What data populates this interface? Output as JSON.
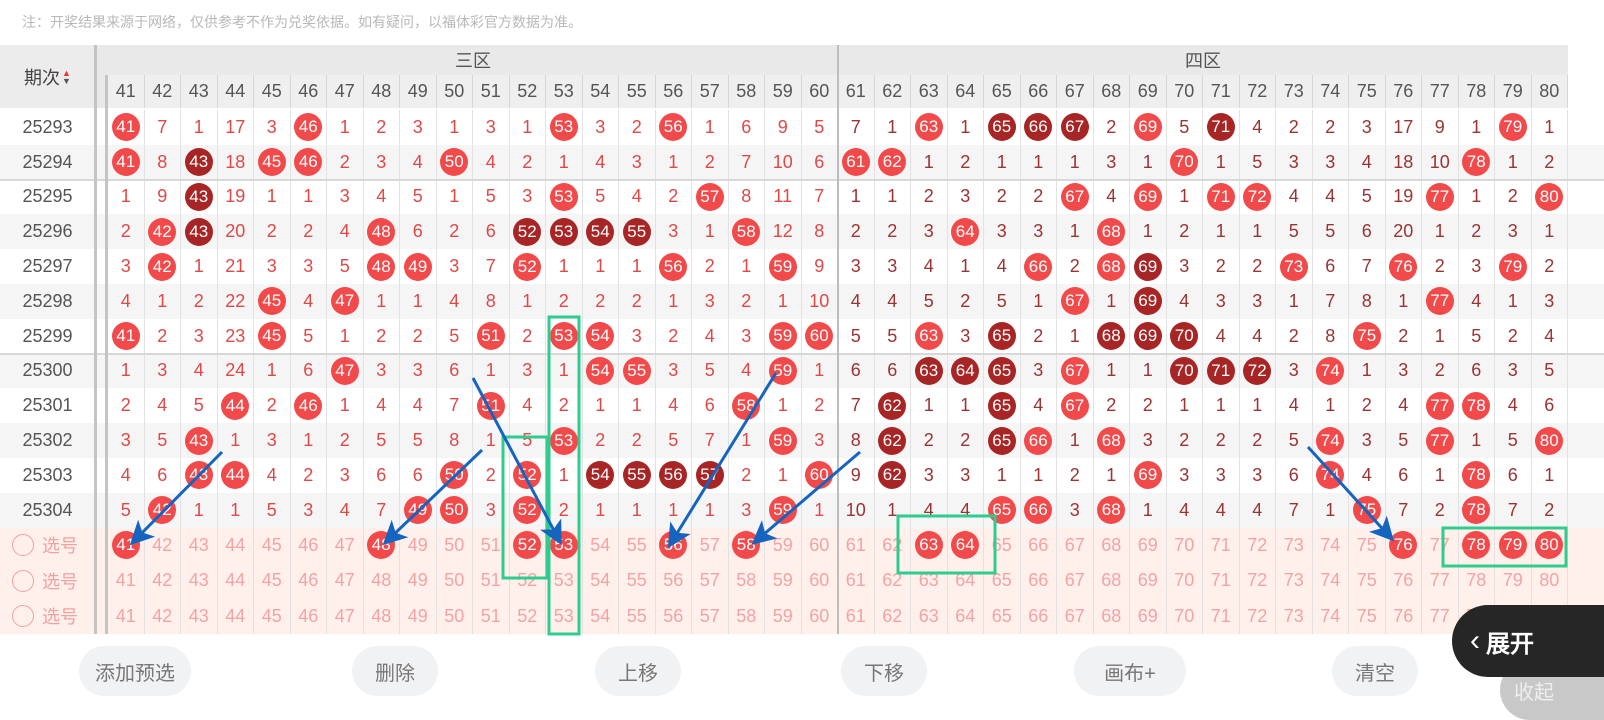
{
  "note": "注：开奖结果来源于网络，仅供参考不作为兑奖依据。如有疑问，以福体彩官方数据为准。",
  "header": {
    "issue_label": "期次",
    "zones": [
      {
        "label": "三区",
        "from": 41,
        "to": 60
      },
      {
        "label": "四区",
        "from": 61,
        "to": 80
      }
    ],
    "columns": [
      "41",
      "42",
      "43",
      "44",
      "45",
      "46",
      "47",
      "48",
      "49",
      "50",
      "51",
      "52",
      "53",
      "54",
      "55",
      "56",
      "57",
      "58",
      "59",
      "60",
      "61",
      "62",
      "63",
      "64",
      "65",
      "66",
      "67",
      "68",
      "69",
      "70",
      "71",
      "72",
      "73",
      "74",
      "75",
      "76",
      "77",
      "78",
      "79",
      "80"
    ]
  },
  "colors": {
    "ball": "#f24a4a",
    "ball_dark": "#a82525",
    "arrow": "#1565c0",
    "highlight_box": "#2ecc8f"
  },
  "rows": [
    {
      "issue": "25293",
      "cells": [
        {
          "ball": "41"
        },
        7,
        1,
        17,
        3,
        {
          "ball": "46"
        },
        1,
        2,
        3,
        1,
        3,
        1,
        {
          "ball": "53"
        },
        3,
        2,
        {
          "ball": "56"
        },
        1,
        6,
        9,
        5,
        7,
        1,
        {
          "ball": "63"
        },
        1,
        {
          "ball": "65",
          "dark": true
        },
        {
          "ball": "66",
          "dark": true
        },
        {
          "ball": "67",
          "dark": true
        },
        2,
        {
          "ball": "69"
        },
        5,
        {
          "ball": "71",
          "dark": true
        },
        4,
        2,
        2,
        3,
        17,
        9,
        1,
        {
          "ball": "79"
        },
        1
      ]
    },
    {
      "issue": "25294",
      "cells": [
        {
          "ball": "41"
        },
        8,
        {
          "ball": "43",
          "dark": true
        },
        18,
        {
          "ball": "45"
        },
        {
          "ball": "46"
        },
        2,
        3,
        4,
        {
          "ball": "50"
        },
        4,
        2,
        1,
        4,
        3,
        1,
        2,
        7,
        10,
        6,
        {
          "ball": "61"
        },
        {
          "ball": "62"
        },
        1,
        2,
        1,
        1,
        1,
        3,
        1,
        {
          "ball": "70"
        },
        1,
        5,
        3,
        3,
        4,
        18,
        10,
        {
          "ball": "78"
        },
        1,
        2
      ]
    },
    {
      "issue": "25295",
      "cells": [
        1,
        9,
        {
          "ball": "43",
          "dark": true
        },
        19,
        1,
        1,
        3,
        4,
        5,
        1,
        5,
        3,
        {
          "ball": "53"
        },
        5,
        4,
        2,
        {
          "ball": "57"
        },
        8,
        11,
        7,
        1,
        1,
        2,
        3,
        2,
        2,
        {
          "ball": "67"
        },
        4,
        {
          "ball": "69"
        },
        1,
        {
          "ball": "71"
        },
        {
          "ball": "72"
        },
        4,
        4,
        5,
        19,
        {
          "ball": "77"
        },
        1,
        2,
        {
          "ball": "80"
        }
      ]
    },
    {
      "issue": "25296",
      "cells": [
        2,
        {
          "ball": "42"
        },
        {
          "ball": "43",
          "dark": true
        },
        20,
        2,
        2,
        4,
        {
          "ball": "48"
        },
        6,
        2,
        6,
        {
          "ball": "52",
          "dark": true
        },
        {
          "ball": "53",
          "dark": true
        },
        {
          "ball": "54",
          "dark": true
        },
        {
          "ball": "55",
          "dark": true
        },
        3,
        1,
        {
          "ball": "58"
        },
        12,
        8,
        2,
        2,
        3,
        {
          "ball": "64"
        },
        3,
        3,
        1,
        {
          "ball": "68"
        },
        1,
        2,
        1,
        1,
        5,
        5,
        6,
        20,
        1,
        2,
        3,
        1
      ]
    },
    {
      "issue": "25297",
      "cells": [
        3,
        {
          "ball": "42"
        },
        1,
        21,
        3,
        3,
        5,
        {
          "ball": "48"
        },
        {
          "ball": "49"
        },
        3,
        7,
        {
          "ball": "52"
        },
        1,
        1,
        1,
        {
          "ball": "56"
        },
        2,
        1,
        {
          "ball": "59"
        },
        9,
        3,
        3,
        4,
        1,
        4,
        {
          "ball": "66"
        },
        2,
        {
          "ball": "68"
        },
        {
          "ball": "69",
          "dark": true
        },
        3,
        2,
        2,
        {
          "ball": "73"
        },
        6,
        7,
        {
          "ball": "76"
        },
        2,
        3,
        {
          "ball": "79"
        },
        2
      ]
    },
    {
      "issue": "25298",
      "cells": [
        4,
        1,
        2,
        22,
        {
          "ball": "45"
        },
        4,
        {
          "ball": "47"
        },
        1,
        1,
        4,
        8,
        1,
        2,
        2,
        2,
        1,
        3,
        2,
        1,
        10,
        4,
        4,
        5,
        2,
        5,
        1,
        {
          "ball": "67"
        },
        1,
        {
          "ball": "69",
          "dark": true
        },
        4,
        3,
        3,
        1,
        7,
        8,
        1,
        {
          "ball": "77"
        },
        4,
        1,
        3
      ]
    },
    {
      "issue": "25299",
      "cells": [
        {
          "ball": "41"
        },
        2,
        3,
        23,
        {
          "ball": "45"
        },
        5,
        1,
        2,
        2,
        5,
        {
          "ball": "51"
        },
        2,
        {
          "ball": "53"
        },
        {
          "ball": "54"
        },
        3,
        2,
        4,
        3,
        {
          "ball": "59"
        },
        {
          "ball": "60"
        },
        5,
        5,
        {
          "ball": "63"
        },
        3,
        {
          "ball": "65",
          "dark": true
        },
        2,
        1,
        {
          "ball": "68",
          "dark": true
        },
        {
          "ball": "69",
          "dark": true
        },
        {
          "ball": "70",
          "dark": true
        },
        4,
        4,
        2,
        8,
        {
          "ball": "75"
        },
        2,
        1,
        5,
        2,
        4
      ]
    },
    {
      "issue": "25300",
      "cells": [
        1,
        3,
        4,
        24,
        1,
        6,
        {
          "ball": "47"
        },
        3,
        3,
        6,
        1,
        3,
        1,
        {
          "ball": "54"
        },
        {
          "ball": "55"
        },
        3,
        5,
        4,
        {
          "ball": "59"
        },
        1,
        6,
        6,
        {
          "ball": "63",
          "dark": true
        },
        {
          "ball": "64",
          "dark": true
        },
        {
          "ball": "65",
          "dark": true
        },
        3,
        {
          "ball": "67"
        },
        1,
        1,
        {
          "ball": "70",
          "dark": true
        },
        {
          "ball": "71",
          "dark": true
        },
        {
          "ball": "72",
          "dark": true
        },
        3,
        {
          "ball": "74"
        },
        1,
        3,
        2,
        6,
        3,
        5
      ]
    },
    {
      "issue": "25301",
      "cells": [
        2,
        4,
        5,
        {
          "ball": "44"
        },
        2,
        {
          "ball": "46"
        },
        1,
        4,
        4,
        7,
        {
          "ball": "51"
        },
        4,
        2,
        1,
        1,
        4,
        6,
        {
          "ball": "58"
        },
        1,
        2,
        7,
        {
          "ball": "62",
          "dark": true
        },
        1,
        1,
        {
          "ball": "65",
          "dark": true
        },
        4,
        {
          "ball": "67"
        },
        2,
        2,
        1,
        1,
        1,
        4,
        1,
        2,
        4,
        {
          "ball": "77"
        },
        {
          "ball": "78"
        },
        4,
        6
      ]
    },
    {
      "issue": "25302",
      "cells": [
        3,
        5,
        {
          "ball": "43"
        },
        1,
        3,
        1,
        2,
        5,
        5,
        8,
        1,
        5,
        {
          "ball": "53"
        },
        2,
        2,
        5,
        7,
        1,
        {
          "ball": "59"
        },
        3,
        8,
        {
          "ball": "62",
          "dark": true
        },
        2,
        2,
        {
          "ball": "65",
          "dark": true
        },
        {
          "ball": "66"
        },
        1,
        {
          "ball": "68"
        },
        3,
        2,
        2,
        2,
        5,
        {
          "ball": "74"
        },
        3,
        5,
        {
          "ball": "77"
        },
        1,
        5,
        {
          "ball": "80"
        }
      ]
    },
    {
      "issue": "25303",
      "cells": [
        4,
        6,
        {
          "ball": "43"
        },
        {
          "ball": "44"
        },
        4,
        2,
        3,
        6,
        6,
        {
          "ball": "50"
        },
        2,
        {
          "ball": "52"
        },
        1,
        {
          "ball": "54",
          "dark": true
        },
        {
          "ball": "55",
          "dark": true
        },
        {
          "ball": "56",
          "dark": true
        },
        {
          "ball": "57",
          "dark": true
        },
        2,
        1,
        {
          "ball": "60"
        },
        9,
        {
          "ball": "62",
          "dark": true
        },
        3,
        3,
        1,
        1,
        2,
        1,
        {
          "ball": "69"
        },
        3,
        3,
        3,
        6,
        {
          "ball": "74"
        },
        4,
        6,
        1,
        {
          "ball": "78"
        },
        6,
        1
      ]
    },
    {
      "issue": "25304",
      "cells": [
        5,
        {
          "ball": "42"
        },
        1,
        1,
        5,
        3,
        4,
        7,
        {
          "ball": "49"
        },
        {
          "ball": "50"
        },
        3,
        {
          "ball": "52"
        },
        2,
        1,
        1,
        1,
        1,
        3,
        {
          "ball": "59"
        },
        1,
        10,
        1,
        4,
        4,
        {
          "ball": "65"
        },
        {
          "ball": "66"
        },
        3,
        {
          "ball": "68"
        },
        1,
        4,
        4,
        4,
        7,
        1,
        {
          "ball": "75"
        },
        7,
        2,
        {
          "ball": "78"
        },
        7,
        2
      ]
    }
  ],
  "selection_rows": [
    {
      "label": "选号",
      "selected": [
        "41",
        "48",
        "52",
        "53",
        "56",
        "58",
        "63",
        "64",
        "76",
        "78",
        "79",
        "80"
      ]
    },
    {
      "label": "选号",
      "selected": []
    },
    {
      "label": "选号",
      "selected": []
    }
  ],
  "buttons": [
    {
      "label": "添加预选",
      "name": "add-preselect-button"
    },
    {
      "label": "删除",
      "name": "delete-button"
    },
    {
      "label": "上移",
      "name": "move-up-button"
    },
    {
      "label": "下移",
      "name": "move-down-button"
    },
    {
      "label": "画布+",
      "name": "canvas-plus-button"
    },
    {
      "label": "清空",
      "name": "clear-button"
    }
  ],
  "expand_button": {
    "label": "展开",
    "icon": "chevron-left-icon"
  },
  "collapse_button": {
    "label": "收起"
  }
}
